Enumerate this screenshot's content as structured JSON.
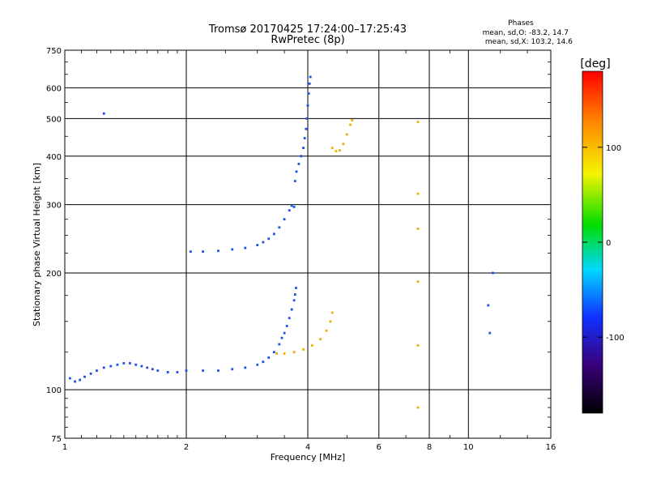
{
  "chart_data": {
    "type": "scatter",
    "title": "Tromsø 20170425 17:24:00–17:25:43",
    "subtitle": "RwPretec (8p)",
    "xlabel": "Frequency [MHz]",
    "ylabel": "Stationary phase Virtual Height [km]",
    "x_scale": "log",
    "y_scale": "log",
    "xlim": [
      1,
      16
    ],
    "ylim": [
      75,
      750
    ],
    "x_ticks": [
      1,
      2,
      4,
      6,
      8,
      10,
      16
    ],
    "x_tick_labels": [
      "1",
      "2",
      "4",
      "6",
      "8",
      "10",
      "16"
    ],
    "y_ticks": [
      75,
      100,
      200,
      300,
      400,
      500,
      600,
      750
    ],
    "y_tick_labels": [
      "75",
      "100",
      "200",
      "300",
      "400",
      "500",
      "600",
      "750"
    ],
    "grid": true,
    "phases": {
      "title": "Phases",
      "line_o": "mean, sd,O: -83.2, 14.7",
      "line_x": "mean, sd,X: 103.2, 14.6"
    },
    "colorbar": {
      "label": "[deg]",
      "range": [
        -180,
        180
      ],
      "ticks": [
        100,
        0,
        -100
      ],
      "tick_labels": [
        "100",
        "0",
        "-100"
      ]
    },
    "series": [
      {
        "mode": "O",
        "phase": -83,
        "color": "#1f4fe0",
        "points": [
          [
            1.03,
            107
          ],
          [
            1.06,
            105
          ],
          [
            1.09,
            106
          ],
          [
            1.12,
            108
          ],
          [
            1.16,
            110
          ],
          [
            1.2,
            112
          ],
          [
            1.25,
            114
          ],
          [
            1.3,
            115
          ],
          [
            1.35,
            116
          ],
          [
            1.4,
            117
          ],
          [
            1.45,
            117
          ],
          [
            1.5,
            116
          ],
          [
            1.55,
            115
          ],
          [
            1.6,
            114
          ],
          [
            1.65,
            113
          ],
          [
            1.7,
            112
          ],
          [
            1.8,
            111
          ],
          [
            1.9,
            111
          ],
          [
            2.0,
            112
          ],
          [
            2.2,
            112
          ],
          [
            2.4,
            112
          ],
          [
            2.6,
            113
          ],
          [
            2.8,
            114
          ],
          [
            3.0,
            116
          ],
          [
            3.1,
            118
          ],
          [
            3.2,
            121
          ],
          [
            3.3,
            125
          ],
          [
            3.4,
            131
          ],
          [
            3.45,
            136
          ],
          [
            3.5,
            140
          ],
          [
            3.55,
            146
          ],
          [
            3.6,
            153
          ],
          [
            3.65,
            161
          ],
          [
            3.7,
            170
          ],
          [
            3.72,
            176
          ],
          [
            3.74,
            183
          ],
          [
            2.05,
            227
          ],
          [
            2.2,
            227
          ],
          [
            2.4,
            228
          ],
          [
            2.6,
            230
          ],
          [
            2.8,
            232
          ],
          [
            3.0,
            236
          ],
          [
            3.1,
            240
          ],
          [
            3.2,
            245
          ],
          [
            3.3,
            252
          ],
          [
            3.4,
            262
          ],
          [
            3.5,
            275
          ],
          [
            3.6,
            290
          ],
          [
            3.65,
            298
          ],
          [
            3.7,
            296
          ],
          [
            3.72,
            345
          ],
          [
            3.75,
            365
          ],
          [
            3.8,
            382
          ],
          [
            3.85,
            400
          ],
          [
            3.9,
            420
          ],
          [
            3.93,
            445
          ],
          [
            3.96,
            470
          ],
          [
            3.98,
            500
          ],
          [
            4.0,
            540
          ],
          [
            4.02,
            580
          ],
          [
            4.04,
            615
          ],
          [
            4.06,
            640
          ],
          [
            1.25,
            515
          ],
          [
            11.5,
            200
          ],
          [
            11.2,
            165
          ],
          [
            11.3,
            140
          ]
        ]
      },
      {
        "mode": "X",
        "phase": 103,
        "color": "#f0b000",
        "points": [
          [
            3.35,
            124
          ],
          [
            3.5,
            124
          ],
          [
            3.7,
            125
          ],
          [
            3.9,
            127
          ],
          [
            4.1,
            130
          ],
          [
            4.3,
            135
          ],
          [
            4.45,
            142
          ],
          [
            4.55,
            150
          ],
          [
            4.6,
            158
          ],
          [
            4.6,
            420
          ],
          [
            4.7,
            412
          ],
          [
            4.8,
            414
          ],
          [
            4.9,
            430
          ],
          [
            5.0,
            455
          ],
          [
            5.1,
            482
          ],
          [
            5.15,
            495
          ],
          [
            7.5,
            90
          ],
          [
            7.5,
            130
          ],
          [
            7.5,
            190
          ],
          [
            7.5,
            260
          ],
          [
            7.5,
            320
          ],
          [
            7.5,
            490
          ]
        ]
      }
    ]
  }
}
